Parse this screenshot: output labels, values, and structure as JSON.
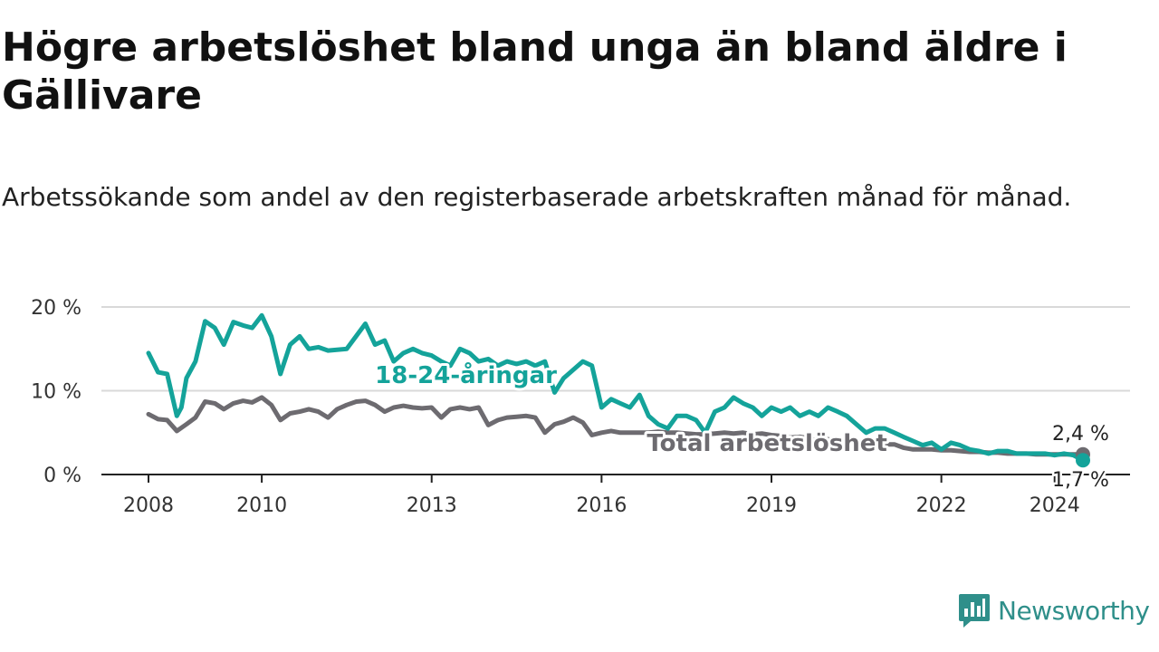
{
  "title": "Högre arbetslöshet bland unga än bland äldre i Gällivare",
  "subtitle": "Arbetssökande som andel av den registerbaserade arbetskraften månad för månad.",
  "brand": {
    "name": "Newsworthy",
    "icon": "newsworthy-logo-icon"
  },
  "colors": {
    "youth": "#14a39a",
    "total": "#6d6b70",
    "grid": "#d9d9d9",
    "axis": "#222222"
  },
  "chart_data": {
    "type": "line",
    "title": "Högre arbetslöshet bland unga än bland äldre i Gällivare",
    "xlabel": "",
    "ylabel": "",
    "ylim": [
      0,
      20
    ],
    "xlim": [
      2008,
      2024.5
    ],
    "y_ticks": [
      0,
      10,
      20
    ],
    "y_tick_labels": [
      "0 %",
      "10 %",
      "20 %"
    ],
    "x_ticks": [
      2008,
      2010,
      2013,
      2016,
      2019,
      2022,
      2024
    ],
    "x_tick_labels": [
      "2008",
      "2010",
      "2013",
      "2016",
      "2019",
      "2022",
      "2024"
    ],
    "grid": true,
    "series": [
      {
        "name": "18-24-åringar",
        "end_label": "1,7 %",
        "x": [
          2008.0,
          2008.17,
          2008.33,
          2008.5,
          2008.58,
          2008.67,
          2008.83,
          2009.0,
          2009.17,
          2009.33,
          2009.5,
          2009.67,
          2009.83,
          2010.0,
          2010.17,
          2010.33,
          2010.5,
          2010.67,
          2010.83,
          2011.0,
          2011.17,
          2011.5,
          2011.83,
          2012.0,
          2012.17,
          2012.33,
          2012.5,
          2012.67,
          2012.83,
          2013.0,
          2013.17,
          2013.33,
          2013.5,
          2013.67,
          2013.83,
          2014.0,
          2014.17,
          2014.33,
          2014.5,
          2014.67,
          2014.83,
          2015.0,
          2015.17,
          2015.33,
          2015.5,
          2015.67,
          2015.83,
          2016.0,
          2016.17,
          2016.33,
          2016.5,
          2016.67,
          2016.83,
          2017.0,
          2017.17,
          2017.33,
          2017.5,
          2017.67,
          2017.83,
          2018.0,
          2018.17,
          2018.33,
          2018.5,
          2018.67,
          2018.83,
          2019.0,
          2019.17,
          2019.33,
          2019.5,
          2019.67,
          2019.83,
          2020.0,
          2020.17,
          2020.33,
          2020.5,
          2020.67,
          2020.83,
          2021.0,
          2021.17,
          2021.33,
          2021.5,
          2021.67,
          2021.83,
          2022.0,
          2022.17,
          2022.33,
          2022.5,
          2022.67,
          2022.83,
          2023.0,
          2023.17,
          2023.33,
          2023.5,
          2023.67,
          2023.83,
          2024.0,
          2024.17,
          2024.33,
          2024.5
        ],
        "values": [
          14.5,
          12.2,
          12.0,
          7.0,
          8.0,
          11.5,
          13.5,
          18.3,
          17.5,
          15.5,
          18.2,
          17.8,
          17.5,
          19.0,
          16.5,
          12.0,
          15.5,
          16.5,
          15.0,
          15.2,
          14.8,
          15.0,
          18.0,
          15.5,
          16.0,
          13.5,
          14.5,
          15.0,
          14.5,
          14.2,
          13.5,
          13.0,
          15.0,
          14.5,
          13.5,
          13.8,
          13.0,
          13.5,
          13.2,
          13.5,
          13.0,
          13.5,
          9.8,
          11.5,
          12.5,
          13.5,
          13.0,
          8.0,
          9.0,
          8.5,
          8.0,
          9.5,
          7.0,
          6.0,
          5.5,
          7.0,
          7.0,
          6.5,
          5.0,
          7.5,
          8.0,
          9.2,
          8.5,
          8.0,
          7.0,
          8.0,
          7.5,
          8.0,
          7.0,
          7.5,
          7.0,
          8.0,
          7.5,
          7.0,
          6.0,
          5.0,
          5.5,
          5.5,
          5.0,
          4.5,
          4.0,
          3.5,
          3.8,
          3.0,
          3.8,
          3.5,
          3.0,
          2.8,
          2.5,
          2.8,
          2.8,
          2.5,
          2.5,
          2.5,
          2.5,
          2.3,
          2.5,
          2.3,
          1.7
        ]
      },
      {
        "name": "Total arbetslöshet",
        "end_label": "2,4 %",
        "x": [
          2008.0,
          2008.17,
          2008.33,
          2008.5,
          2008.67,
          2008.83,
          2009.0,
          2009.17,
          2009.33,
          2009.5,
          2009.67,
          2009.83,
          2010.0,
          2010.17,
          2010.33,
          2010.5,
          2010.67,
          2010.83,
          2011.0,
          2011.17,
          2011.33,
          2011.5,
          2011.67,
          2011.83,
          2012.0,
          2012.17,
          2012.33,
          2012.5,
          2012.67,
          2012.83,
          2013.0,
          2013.17,
          2013.33,
          2013.5,
          2013.67,
          2013.83,
          2014.0,
          2014.17,
          2014.33,
          2014.5,
          2014.67,
          2014.83,
          2015.0,
          2015.17,
          2015.33,
          2015.5,
          2015.67,
          2015.83,
          2016.0,
          2016.17,
          2016.33,
          2016.5,
          2016.67,
          2016.83,
          2017.0,
          2017.17,
          2017.33,
          2017.5,
          2017.67,
          2017.83,
          2018.0,
          2018.17,
          2018.33,
          2018.5,
          2018.67,
          2018.83,
          2019.0,
          2019.17,
          2019.33,
          2019.5,
          2019.67,
          2019.83,
          2020.0,
          2020.17,
          2020.33,
          2020.5,
          2020.67,
          2020.83,
          2021.0,
          2021.17,
          2021.33,
          2021.5,
          2021.67,
          2021.83,
          2022.0,
          2022.17,
          2022.33,
          2022.5,
          2022.67,
          2022.83,
          2023.0,
          2023.17,
          2023.33,
          2023.5,
          2023.67,
          2023.83,
          2024.0,
          2024.17,
          2024.33,
          2024.5
        ],
        "values": [
          7.2,
          6.6,
          6.5,
          5.2,
          6.0,
          6.8,
          8.7,
          8.5,
          7.8,
          8.5,
          8.8,
          8.6,
          9.2,
          8.3,
          6.5,
          7.3,
          7.5,
          7.8,
          7.5,
          6.8,
          7.8,
          8.3,
          8.7,
          8.8,
          8.3,
          7.5,
          8.0,
          8.2,
          8.0,
          7.9,
          8.0,
          6.8,
          7.8,
          8.0,
          7.8,
          8.0,
          5.9,
          6.5,
          6.8,
          6.9,
          7.0,
          6.8,
          5.0,
          6.0,
          6.3,
          6.8,
          6.2,
          4.7,
          5.0,
          5.2,
          5.0,
          5.0,
          5.0,
          5.0,
          5.1,
          5.0,
          5.0,
          4.9,
          4.8,
          4.8,
          4.9,
          5.0,
          4.9,
          5.0,
          4.8,
          4.9,
          4.7,
          4.6,
          4.4,
          4.5,
          4.3,
          4.0,
          4.2,
          4.0,
          3.5,
          3.4,
          3.6,
          3.5,
          3.6,
          3.6,
          3.2,
          3.0,
          3.0,
          3.0,
          2.9,
          2.9,
          2.8,
          2.7,
          2.7,
          2.6,
          2.6,
          2.5,
          2.5,
          2.5,
          2.4,
          2.4,
          2.4,
          2.4,
          2.4,
          2.4
        ]
      }
    ],
    "annotations": [
      {
        "text": "18-24-åringar",
        "series": "18-24-åringar"
      },
      {
        "text": "Total arbetslöshet",
        "series": "Total arbetslöshet"
      }
    ]
  }
}
